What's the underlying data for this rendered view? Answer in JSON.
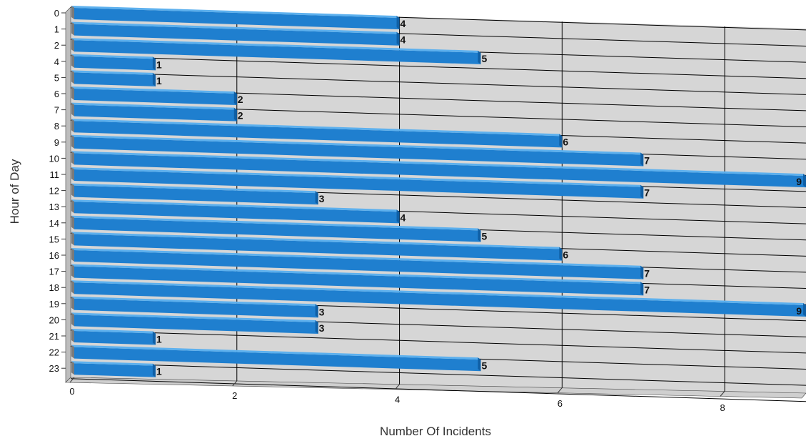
{
  "chart_data": {
    "type": "bar",
    "orientation": "horizontal",
    "three_d": true,
    "categories": [
      "0",
      "1",
      "2",
      "4",
      "5",
      "6",
      "7",
      "8",
      "9",
      "10",
      "11",
      "12",
      "13",
      "14",
      "15",
      "16",
      "17",
      "18",
      "19",
      "20",
      "21",
      "22",
      "23"
    ],
    "values": [
      4,
      4,
      5,
      1,
      1,
      2,
      2,
      6,
      7,
      9,
      7,
      3,
      4,
      5,
      6,
      7,
      7,
      9,
      3,
      3,
      1,
      5,
      1
    ],
    "data_labels": [
      "4",
      "4",
      "5",
      "1",
      "1",
      "2",
      "2",
      "6",
      "7",
      "9",
      "7",
      "3",
      "4",
      "5",
      "6",
      "7",
      "7",
      "9",
      "3",
      "3",
      "1",
      "5",
      "1"
    ],
    "x_ticks": [
      "0",
      "2",
      "4",
      "6",
      "8"
    ],
    "xlim": [
      0,
      9
    ],
    "xlabel": "Number Of Incidents",
    "ylabel": "Hour of Day",
    "grid": true,
    "colors": {
      "bar": "#1f7fcf",
      "bar_top": "#5cb0ee",
      "bar_end": "#0f5fa5",
      "plot_wall": "#d6d6d6",
      "plot_side": "#bdbdbd",
      "floor": "#cfcfcf",
      "grid": "#000000"
    }
  }
}
